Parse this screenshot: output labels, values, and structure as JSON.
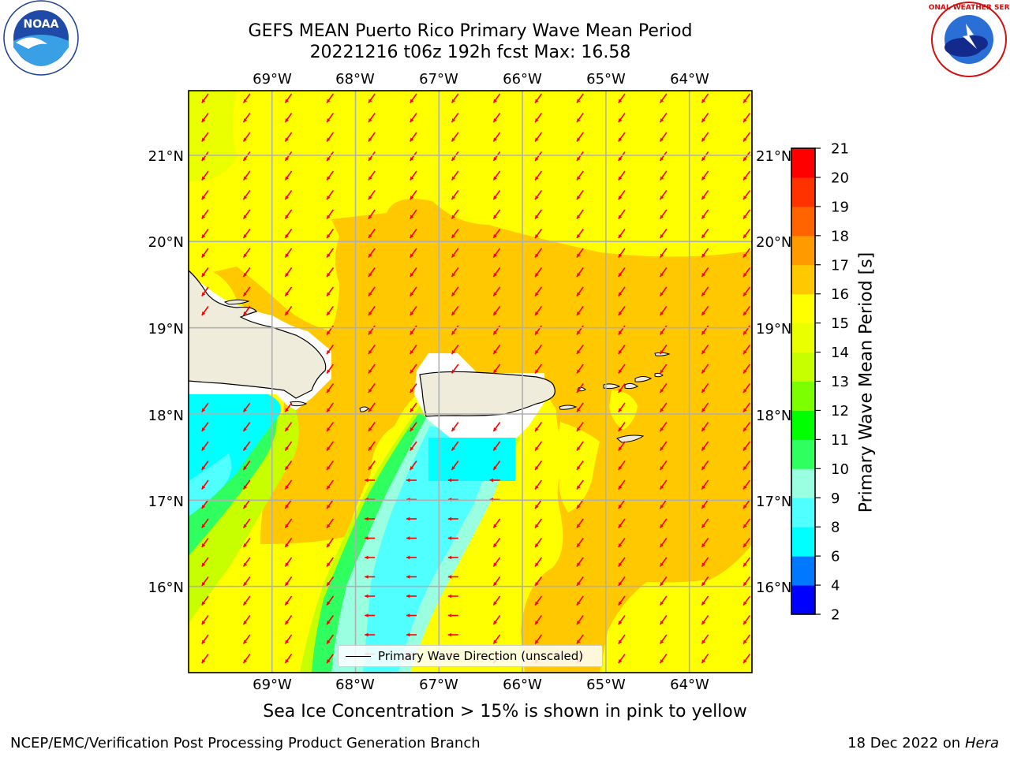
{
  "title": {
    "line1": "GEFS MEAN Puerto Rico Primary Wave Mean Period",
    "line2": "20221216 t06z 192h fcst   Max: 16.58"
  },
  "logos": {
    "left": {
      "icon": "noaa-logo",
      "text": "NOAA"
    },
    "right": {
      "icon": "national-weather-service-logo",
      "text": "NATIONAL WEATHER SERVICE"
    }
  },
  "map": {
    "lon_ticks": [
      "69°W",
      "68°W",
      "67°W",
      "66°W",
      "65°W",
      "64°W"
    ],
    "lat_ticks": [
      "21°N",
      "20°N",
      "19°N",
      "18°N",
      "17°N",
      "16°N"
    ],
    "extent": {
      "lon": [
        -70.0,
        -63.25
      ],
      "lat": [
        15.0,
        21.75
      ]
    },
    "arrow_color": "#ff0000",
    "land_color": "#efecdc",
    "legend_label": "Primary Wave Direction (unscaled)"
  },
  "colorbar": {
    "label": "Primary Wave Mean Period [s]",
    "ticks": [
      "2",
      "4",
      "6",
      "8",
      "9",
      "10",
      "11",
      "12",
      "13",
      "14",
      "15",
      "16",
      "17",
      "18",
      "19",
      "20",
      "21"
    ],
    "colors": [
      "#0000ff",
      "#0078ff",
      "#00ffff",
      "#50ffff",
      "#9affe0",
      "#30ff60",
      "#00ff00",
      "#7cff00",
      "#c8ff00",
      "#eaff00",
      "#ffff00",
      "#ffc800",
      "#ff9a00",
      "#ff6400",
      "#ff3200",
      "#ff0000"
    ]
  },
  "notes": {
    "sea_ice": "Sea Ice Concentration > 15% is shown in pink to yellow",
    "footer_left": "NCEP/EMC/Verification Post Processing Product Generation Branch",
    "footer_date": "18 Dec 2022 on",
    "footer_host": "Hera"
  }
}
